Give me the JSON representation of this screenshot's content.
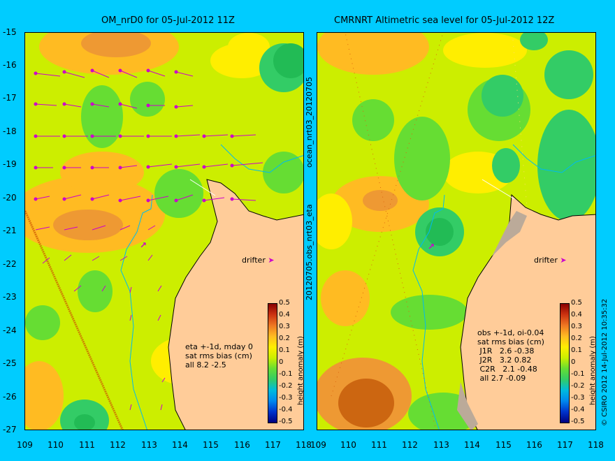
{
  "left": {
    "title": "OM_nrD0 for 05-Jul-2012 11Z",
    "side_label": "20120705.obs_nrt03_eta",
    "stats": "eta +-1d, mday 0\nsat rms bias (cm)\nall 8.2 -2.5",
    "drifter": "drifter"
  },
  "right": {
    "title": "CMRNRT Altimetric sea level  for 05-Jul-2012 12Z",
    "side_label": "ocean_nrt03_20120705",
    "stats": "obs +-1d, oi-0.04\nsat rms bias (cm)\n J1R   2.6 -0.38\n J2R   3.2 0.82\n C2R   2.1 -0.48\n all 2.7 -0.09",
    "drifter": "drifter"
  },
  "axes": {
    "x_ticks": [
      "109",
      "110",
      "111",
      "112",
      "113",
      "114",
      "115",
      "116",
      "117",
      "118"
    ],
    "y_ticks": [
      "-15",
      "-16",
      "-17",
      "-18",
      "-19",
      "-20",
      "-21",
      "-22",
      "-23",
      "-24",
      "-25",
      "-26",
      "-27"
    ],
    "x_range": [
      109,
      118
    ],
    "y_range": [
      -27,
      -15
    ]
  },
  "colorbar": {
    "label": "height anomaly (m)",
    "ticks": [
      "0.5",
      "0.4",
      "0.3",
      "0.2",
      "0.1",
      "0",
      "-0.1",
      "-0.2",
      "-0.3",
      "-0.4",
      "-0.5"
    ],
    "colors": [
      "#000080",
      "#0033cc",
      "#0088ee",
      "#00bbdd",
      "#33cc66",
      "#66dd33",
      "#ccee00",
      "#ffee00",
      "#ffbb22",
      "#ee7722",
      "#cc3311",
      "#880000"
    ]
  },
  "credit": "© CSIRO 2012  14-Jul-2012 10:35:32",
  "colors": {
    "background": "#00ccff",
    "land": "#ffcc99",
    "arrows": "#cc00cc",
    "coast": "#00bbee"
  }
}
